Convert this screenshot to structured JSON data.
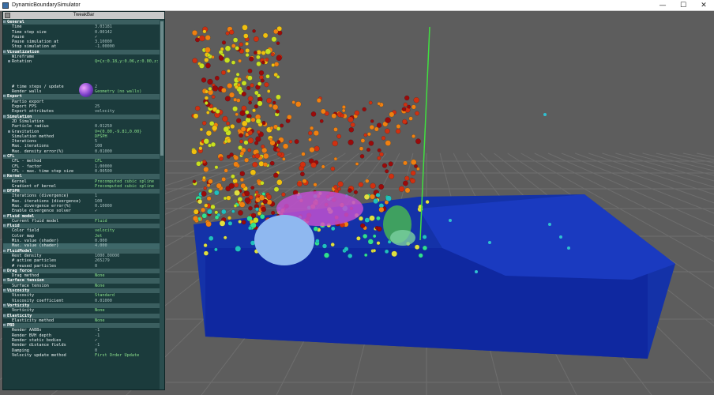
{
  "window": {
    "title": "DynamicBoundarySimulator"
  },
  "tweakbar": {
    "title": "TweakBar",
    "rows": [
      {
        "type": "group",
        "label": "General"
      },
      {
        "label": "Time",
        "value": "3.03181"
      },
      {
        "label": "Time step size",
        "value": "0.00142"
      },
      {
        "label": "Pause",
        "value": "✓",
        "style": "check"
      },
      {
        "label": "Pause simulation at",
        "value": "3.10000"
      },
      {
        "label": "Stop simulation at",
        "value": "-1.00000"
      },
      {
        "type": "group",
        "label": "Visualization"
      },
      {
        "label": "Wireframe",
        "value": ""
      },
      {
        "label": "Rotation",
        "value": "Q={x:0.18,y:0.06,z:0.00,z:...",
        "toggle": "⊞",
        "style": "green"
      },
      {
        "label": "",
        "value": ""
      },
      {
        "label": "",
        "value": ""
      },
      {
        "label": "",
        "value": ""
      },
      {
        "label": "",
        "value": ""
      },
      {
        "label": "# time steps / update",
        "value": "2"
      },
      {
        "label": "Render walls",
        "value": "Geometry (no walls)",
        "style": "green"
      },
      {
        "type": "group",
        "label": "Export"
      },
      {
        "label": "Partio export",
        "value": ""
      },
      {
        "label": "Export FPS",
        "value": "25"
      },
      {
        "label": "Export attributes",
        "value": "velocity"
      },
      {
        "type": "group",
        "label": "Simulation"
      },
      {
        "label": "2D Simulation",
        "value": ""
      },
      {
        "label": "Particle radius",
        "value": "0.01250"
      },
      {
        "label": "Gravitation",
        "value": "V={0.00,-9.81,0.00}",
        "toggle": "⊞",
        "style": "green"
      },
      {
        "label": "Simulation method",
        "value": "DFSPH",
        "style": "green"
      },
      {
        "label": "Iterations",
        "value": "5"
      },
      {
        "label": "Max. iterations",
        "value": "100"
      },
      {
        "label": "Max. density error(%)",
        "value": "0.01000"
      },
      {
        "type": "group",
        "label": "CFL"
      },
      {
        "label": "CFL - method",
        "value": "CFL",
        "style": "green"
      },
      {
        "label": "CFL - factor",
        "value": "1.00000"
      },
      {
        "label": "CFL - max. time step size",
        "value": "0.00500"
      },
      {
        "type": "group",
        "label": "Kernel"
      },
      {
        "label": "Kernel",
        "value": "Precomputed cubic spline",
        "style": "green"
      },
      {
        "label": "Gradient of kernel",
        "value": "Precomputed cubic spline",
        "style": "green"
      },
      {
        "type": "group",
        "label": "DFSPH"
      },
      {
        "label": "Iterations (divergence)",
        "value": "1"
      },
      {
        "label": "Max. iterations (divergence)",
        "value": "100"
      },
      {
        "label": "Max. divergence error(%)",
        "value": "0.10000"
      },
      {
        "label": "Enable divergence solver",
        "value": "✓",
        "style": "check"
      },
      {
        "type": "group",
        "label": "Fluid model"
      },
      {
        "label": "Current fluid model",
        "value": "Fluid",
        "style": "green"
      },
      {
        "type": "group",
        "label": "Fluid"
      },
      {
        "label": "Color field",
        "value": "velocity",
        "style": "green"
      },
      {
        "label": "Color map",
        "value": "Jet",
        "style": "green"
      },
      {
        "label": "Min. value (shader)",
        "value": "0.000"
      },
      {
        "label": "Max. value (shader)",
        "value": "4.000",
        "highlight": true
      },
      {
        "type": "group",
        "label": "FluidModel"
      },
      {
        "label": "Rest density",
        "value": "1000.00000"
      },
      {
        "label": "# active particles",
        "value": "265279"
      },
      {
        "label": "# reused particles",
        "value": "0"
      },
      {
        "type": "group",
        "label": "Drag force"
      },
      {
        "label": "Drag method",
        "value": "None",
        "style": "green"
      },
      {
        "type": "group",
        "label": "Surface tension"
      },
      {
        "label": "Surface tension",
        "value": "None",
        "style": "green"
      },
      {
        "type": "group",
        "label": "Viscosity"
      },
      {
        "label": "Viscosity",
        "value": "Standard",
        "style": "green"
      },
      {
        "label": "Viscosity coefficient",
        "value": "0.01000"
      },
      {
        "type": "group",
        "label": "Vorticity"
      },
      {
        "label": "Vorticity",
        "value": "None",
        "style": "green"
      },
      {
        "type": "group",
        "label": "Elasticity"
      },
      {
        "label": "Elasticity method",
        "value": "None",
        "style": "green"
      },
      {
        "type": "group",
        "label": "PBD"
      },
      {
        "label": "Render AABBs",
        "value": "-1"
      },
      {
        "label": "Render BVH depth",
        "value": "-1"
      },
      {
        "label": "Render static bodies",
        "value": "✓",
        "style": "check"
      },
      {
        "label": "Render distance fields",
        "value": "-1"
      },
      {
        "label": "Damping",
        "value": "0"
      },
      {
        "label": "Velocity update method",
        "value": "First Order Update",
        "style": "green"
      }
    ]
  }
}
